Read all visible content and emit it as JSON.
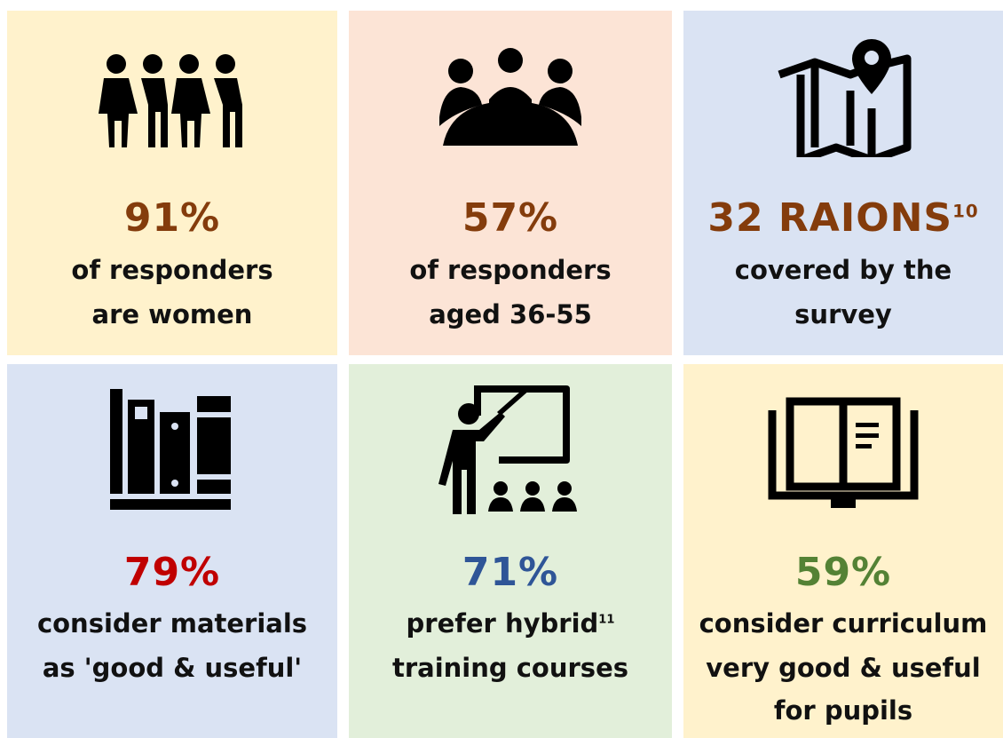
{
  "cards": [
    {
      "stat": "91%",
      "lines": [
        {
          "text": "of responders"
        },
        {
          "text": "are women"
        }
      ]
    },
    {
      "stat": "57%",
      "lines": [
        {
          "text": "of responders"
        },
        {
          "text": "aged 36-55"
        }
      ]
    },
    {
      "stat": "32 RAIONS",
      "stat_sup": "10",
      "lines": [
        {
          "text": "covered by the"
        },
        {
          "text": "survey"
        }
      ]
    },
    {
      "stat": "79%",
      "lines": [
        {
          "text": "consider materials"
        },
        {
          "text": "as 'good & useful'"
        }
      ]
    },
    {
      "stat": "71%",
      "lines": [
        {
          "text": "prefer hybrid",
          "sup": "11"
        },
        {
          "text": "training courses"
        }
      ]
    },
    {
      "stat": "59%",
      "lines": [
        {
          "text": "consider curriculum"
        },
        {
          "text": "very good & useful"
        },
        {
          "text": "for pupils"
        }
      ]
    }
  ]
}
